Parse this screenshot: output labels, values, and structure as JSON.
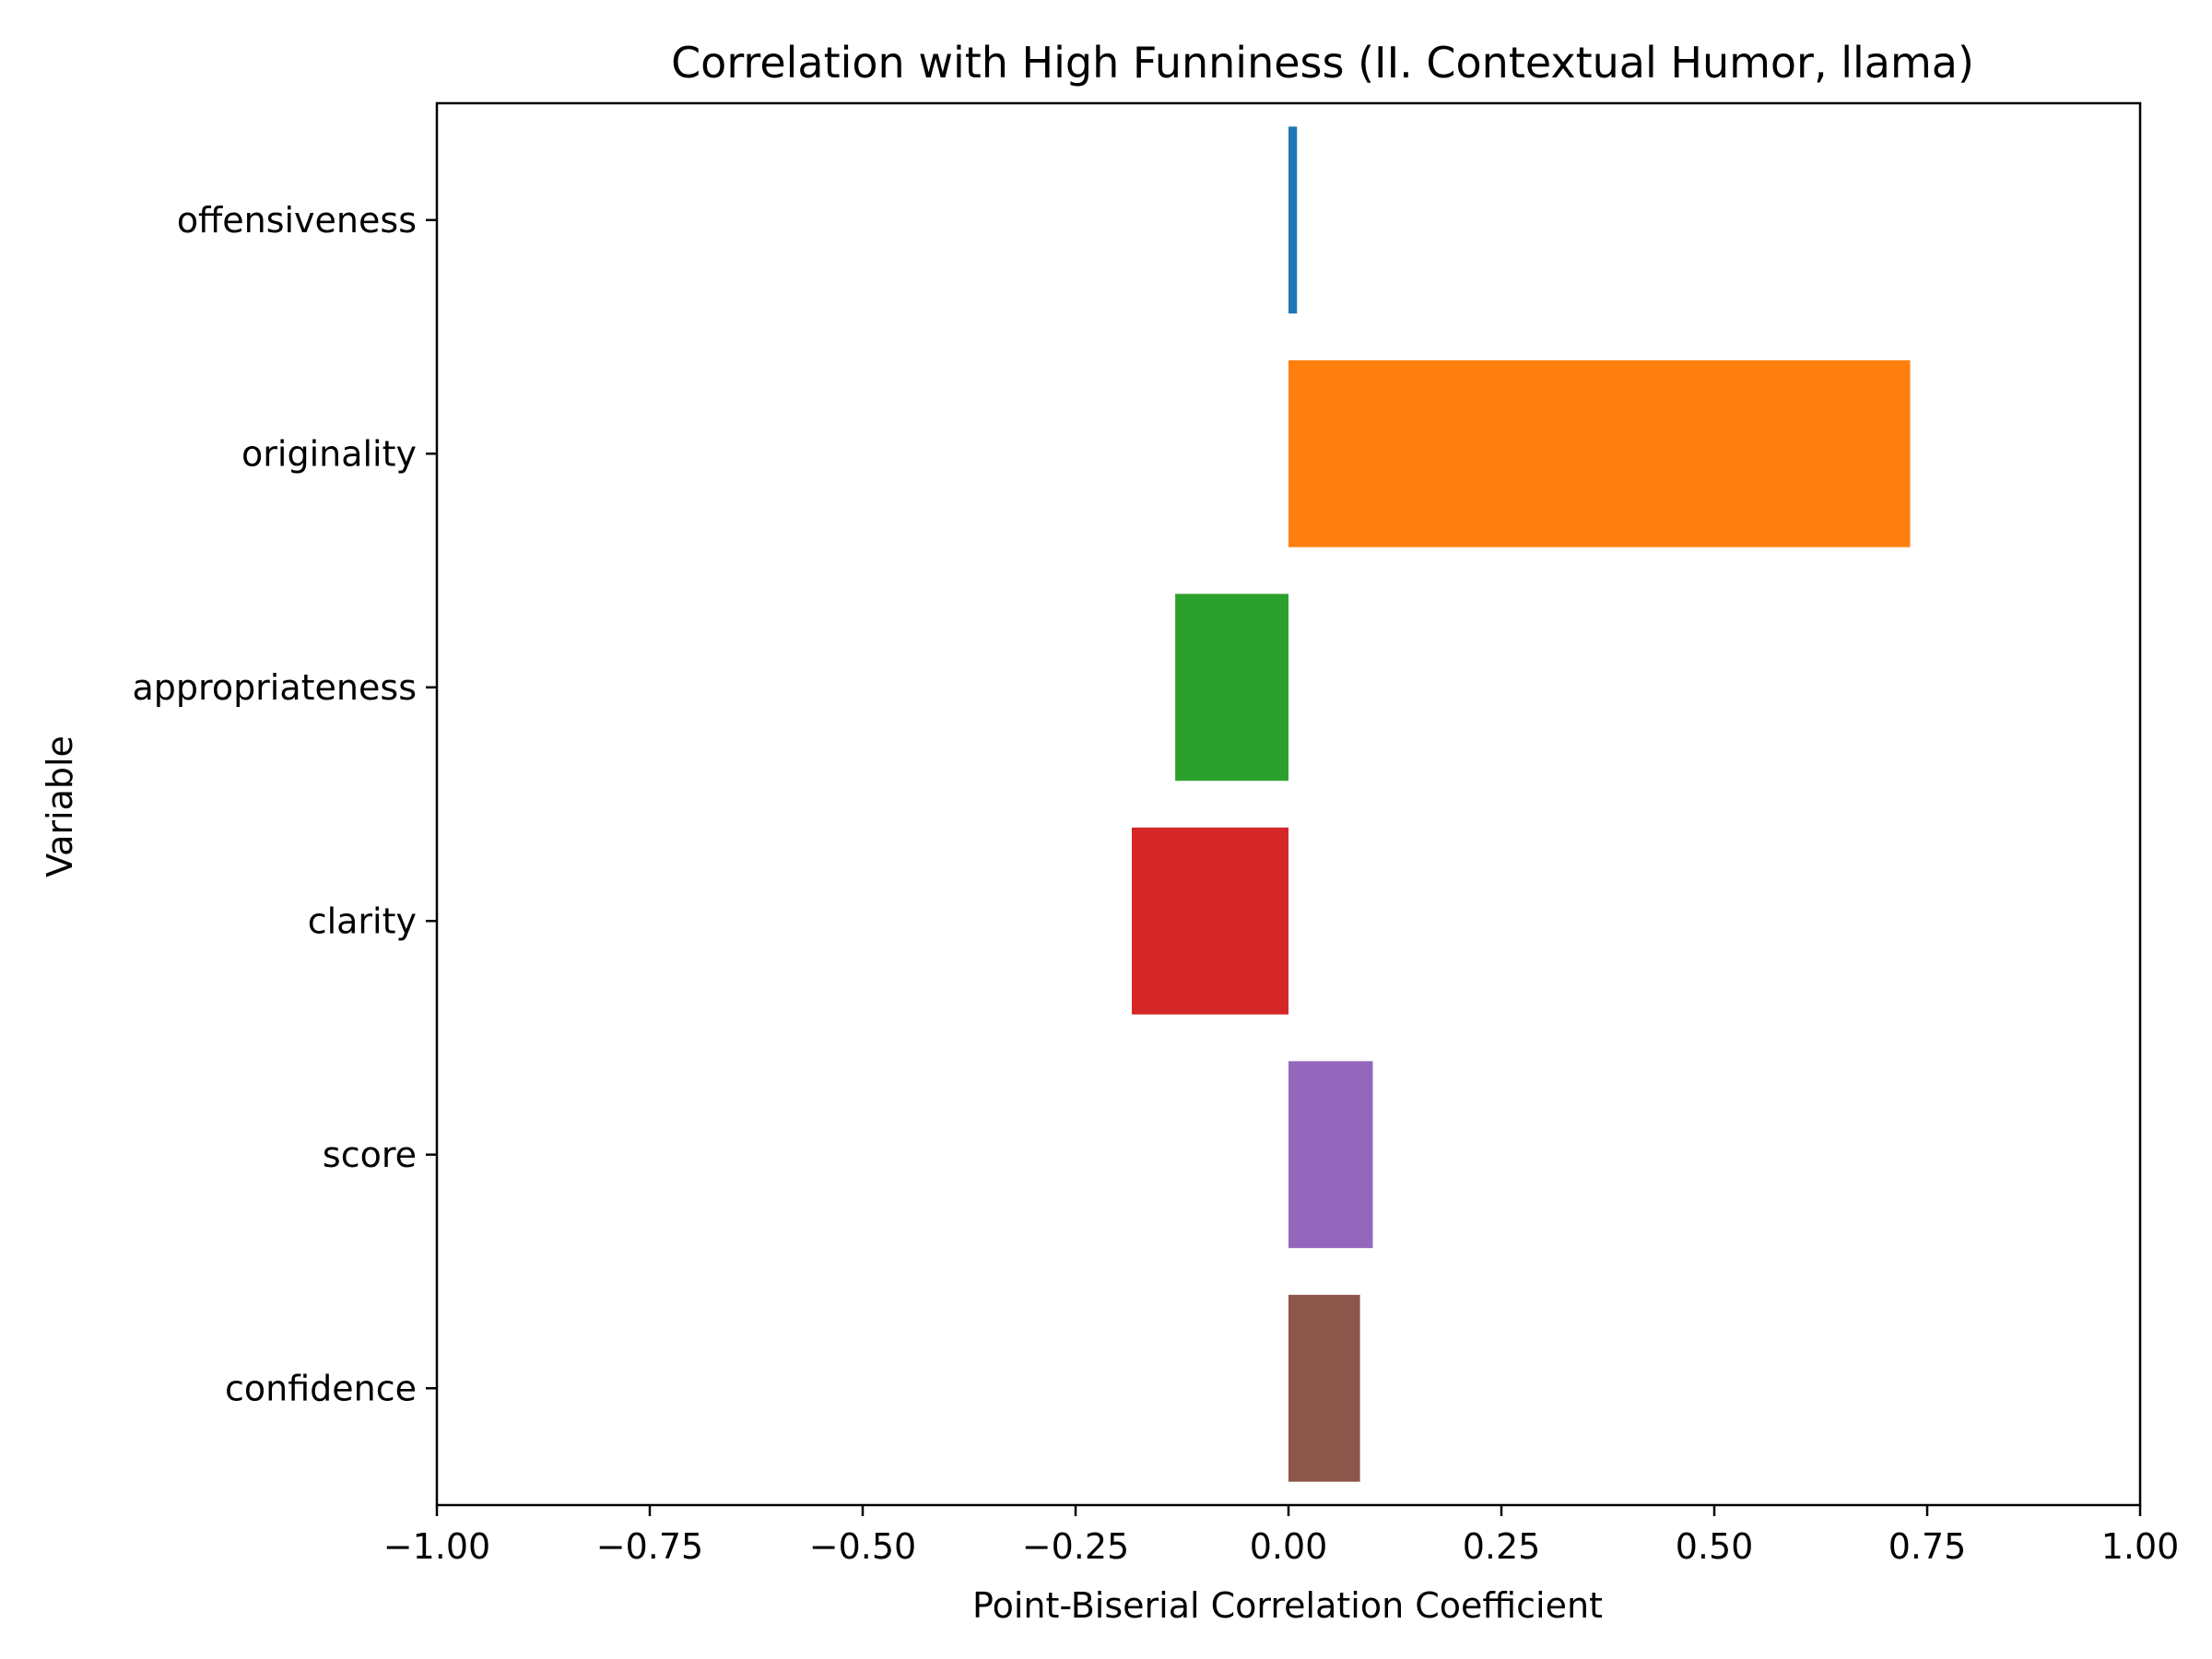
{
  "chart_data": {
    "type": "bar",
    "orientation": "horizontal",
    "title": "Correlation with High Funniness (II. Contextual Humor, llama)",
    "xlabel": "Point-Biserial Correlation Coefficient",
    "ylabel": "Variable",
    "xlim": [
      -1.0,
      1.0
    ],
    "xticks": [
      -1.0,
      -0.75,
      -0.5,
      -0.25,
      0.0,
      0.25,
      0.5,
      0.75,
      1.0
    ],
    "xtick_labels": [
      "−1.00",
      "−0.75",
      "−0.50",
      "−0.25",
      "0.00",
      "0.25",
      "0.50",
      "0.75",
      "1.00"
    ],
    "categories": [
      "offensiveness",
      "originality",
      "appropriateness",
      "clarity",
      "score",
      "confidence"
    ],
    "values": [
      0.01,
      0.73,
      -0.133,
      -0.184,
      0.099,
      0.084
    ],
    "colors": [
      "#1f77b4",
      "#ff7f0e",
      "#2ca02c",
      "#d62728",
      "#9467bd",
      "#8c564b"
    ],
    "grid": false,
    "legend": "none"
  }
}
